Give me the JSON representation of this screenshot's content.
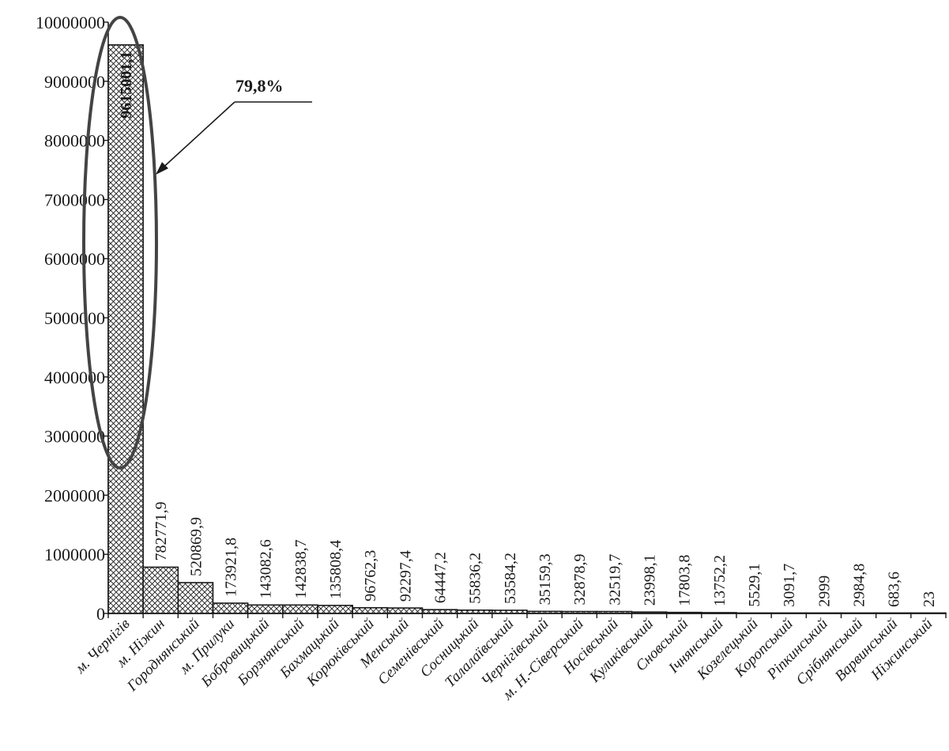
{
  "chart_data": {
    "type": "bar",
    "title": "",
    "xlabel": "",
    "ylabel": "",
    "ylim": [
      0,
      10000000
    ],
    "yticks": [
      "0",
      "1000000",
      "2000000",
      "3000000",
      "4000000",
      "5000000",
      "6000000",
      "7000000",
      "8000000",
      "9000000",
      "10000000"
    ],
    "grid": false,
    "legend": "none",
    "bar_fill": "crosshatch",
    "categories": [
      "м. Чернігів",
      "м. Ніжин",
      "Городнянський",
      "м. Прилуки",
      "Бобровицький",
      "Борзнянський",
      "Бахмацький",
      "Корюківський",
      "Менський",
      "Семенівський",
      "Сосницький",
      "Талалаївський",
      "Чернігівський",
      "м. Н.-Сіверський",
      "Носівський",
      "Куликівський",
      "Сновський",
      "Ічнянський",
      "Козелецький",
      "Коропський",
      "Ріпкинський",
      "Срібнянський",
      "Варвинський",
      "Ніжинський"
    ],
    "values": [
      9615001.1,
      782771.9,
      520869.9,
      173921.8,
      143082.6,
      142838.7,
      135808.4,
      96762.3,
      92297.4,
      64447.2,
      55836.2,
      53584.2,
      35159.3,
      32878.9,
      32519.7,
      23998.1,
      17803.8,
      13752.2,
      5529.1,
      3091.7,
      2999,
      2984.8,
      683.6,
      23
    ],
    "value_labels": [
      "9615001,1",
      "782771,9",
      "520869,9",
      "173921,8",
      "143082,6",
      "142838,7",
      "135808,4",
      "96762,3",
      "92297,4",
      "64447,2",
      "55836,2",
      "53584,2",
      "35159,3",
      "32878,9",
      "32519,7",
      "23998,1",
      "17803,8",
      "13752,2",
      "5529,1",
      "3091,7",
      "2999",
      "2984,8",
      "683,6",
      "23"
    ],
    "annotation": {
      "text": "79,8%",
      "target_category": "м. Чернігів",
      "shape": "ellipse-with-arrow"
    }
  }
}
